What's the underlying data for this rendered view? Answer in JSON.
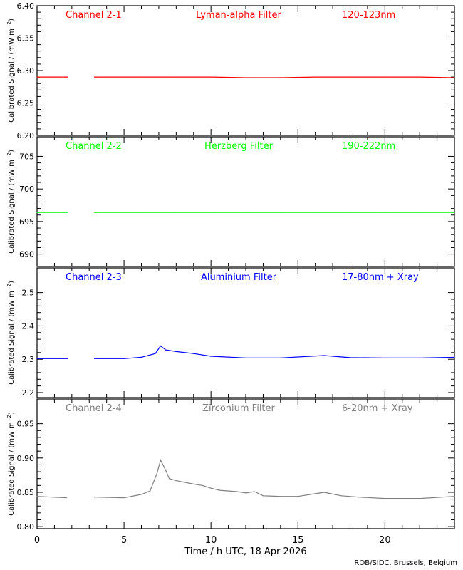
{
  "chart_data": [
    {
      "type": "line",
      "channel": "Channel 2-1",
      "filter": "Lyman-alpha Filter",
      "band": "120-123nm",
      "color": "#ff0000",
      "ylim": [
        6.2,
        6.4
      ],
      "yticks": [
        "6.20",
        "6.25",
        "6.30",
        "6.35",
        "6.40"
      ],
      "x": [
        0,
        1.75,
        1.8,
        3.3,
        6,
        8,
        10,
        12,
        14,
        16,
        18,
        20,
        22,
        24
      ],
      "values": [
        6.29,
        6.29,
        null,
        6.29,
        6.29,
        6.29,
        6.29,
        6.289,
        6.289,
        6.29,
        6.29,
        6.29,
        6.29,
        6.289
      ]
    },
    {
      "type": "line",
      "channel": "Channel 2-2",
      "filter": "Herzberg Filter",
      "band": "190-222nm",
      "color": "#00ff00",
      "ylim": [
        688.1,
        708.0
      ],
      "yticks": [
        "690",
        "695",
        "700",
        "705"
      ],
      "x": [
        0,
        1.75,
        1.8,
        3.3,
        6,
        8,
        10,
        12,
        14,
        16,
        18,
        20,
        22,
        24
      ],
      "values": [
        696.4,
        696.4,
        null,
        696.4,
        696.4,
        696.4,
        696.4,
        696.4,
        696.4,
        696.4,
        696.4,
        696.4,
        696.4,
        696.4
      ]
    },
    {
      "type": "line",
      "channel": "Channel 2-3",
      "filter": "Aluminium Filter",
      "band": "17-80nm + Xray",
      "color": "#0000ff",
      "ylim": [
        2.185,
        2.574
      ],
      "yticks": [
        "2.2",
        "2.3",
        "2.4",
        "2.5"
      ],
      "x": [
        0,
        1.75,
        1.8,
        3.3,
        5,
        6,
        6.8,
        7.1,
        7.4,
        8,
        9,
        10,
        12,
        14,
        16.5,
        18,
        20,
        22,
        24
      ],
      "values": [
        2.302,
        2.302,
        null,
        2.302,
        2.302,
        2.306,
        2.317,
        2.34,
        2.328,
        2.323,
        2.317,
        2.309,
        2.304,
        2.304,
        2.311,
        2.305,
        2.304,
        2.304,
        2.306
      ]
    },
    {
      "type": "line",
      "channel": "Channel 2-4",
      "filter": "Zirconium Filter",
      "band": "6-20nm + Xray",
      "color": "#808080",
      "ylim": [
        0.797,
        0.986
      ],
      "yticks": [
        "0.80",
        "0.85",
        "0.90",
        "0.95"
      ],
      "x": [
        0,
        1.7,
        1.75,
        3.3,
        5,
        6,
        6.5,
        6.9,
        7.1,
        7.4,
        7.6,
        8,
        9,
        9.5,
        10,
        10.5,
        11.5,
        12,
        12.5,
        13,
        14,
        15,
        16,
        16.5,
        17.5,
        18.5,
        20,
        22,
        24
      ],
      "values": [
        0.844,
        0.842,
        null,
        0.843,
        0.842,
        0.847,
        0.852,
        0.878,
        0.897,
        0.882,
        0.87,
        0.867,
        0.862,
        0.86,
        0.856,
        0.853,
        0.851,
        0.849,
        0.851,
        0.845,
        0.844,
        0.844,
        0.848,
        0.85,
        0.845,
        0.843,
        0.841,
        0.841,
        0.844
      ]
    }
  ],
  "ylabel": "Calibrated Signal / (mW m",
  "ylabel_sup": "-2",
  "ylabel_end": ")",
  "xlabel": "Time / h UTC, 18 Apr 2026",
  "xlim": [
    0,
    24
  ],
  "xticks": [
    "0",
    "5",
    "10",
    "15",
    "20"
  ],
  "credit": "ROB/SIDC, Brussels, Belgium"
}
